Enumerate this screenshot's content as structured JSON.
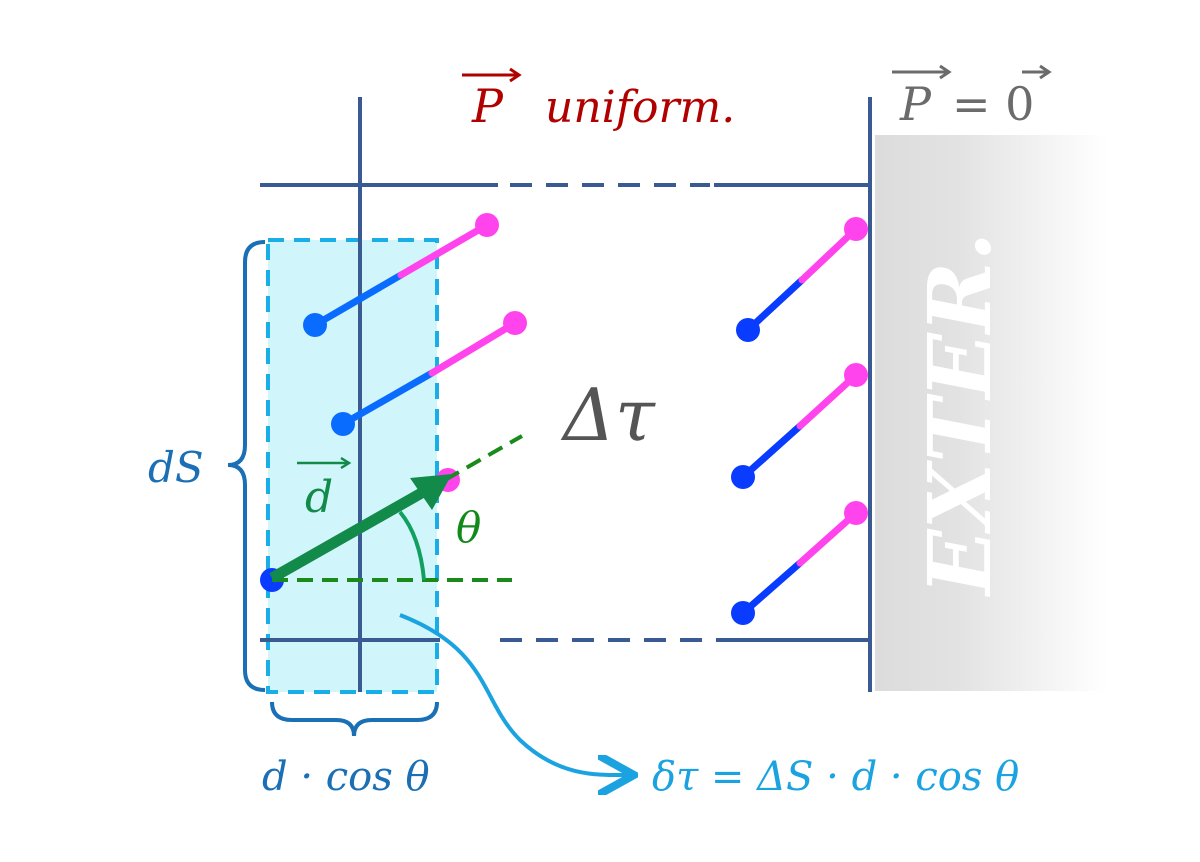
{
  "labels": {
    "polarization_uniform": "P",
    "uniform_text": "uniform.",
    "polarization_exterior": "P",
    "equals_zero": "= 0",
    "volume": "Δτ",
    "surface": "dS",
    "dipole_vector": "d",
    "angle": "θ",
    "projection": "d · cos θ",
    "volume_element": "δτ = ΔS · d · cos θ",
    "exterior": "EXTER."
  },
  "colors": {
    "frame": "#3a5a94",
    "uniform_label": "#b00000",
    "exterior_label": "#6b6b6b",
    "volume_label": "#555555",
    "surface_brace": "#1a6fb5",
    "highlight_fill": "#d0f6fb",
    "highlight_stroke": "#1aaee8",
    "dipole_negative": "#0a3cff",
    "dipole_positive": "#ff44ee",
    "dipole_vector": "#128a4a",
    "angle_lines": "#1a8a1a",
    "element_label": "#1aa3e0",
    "exterior_region": "#e0e0e0"
  }
}
